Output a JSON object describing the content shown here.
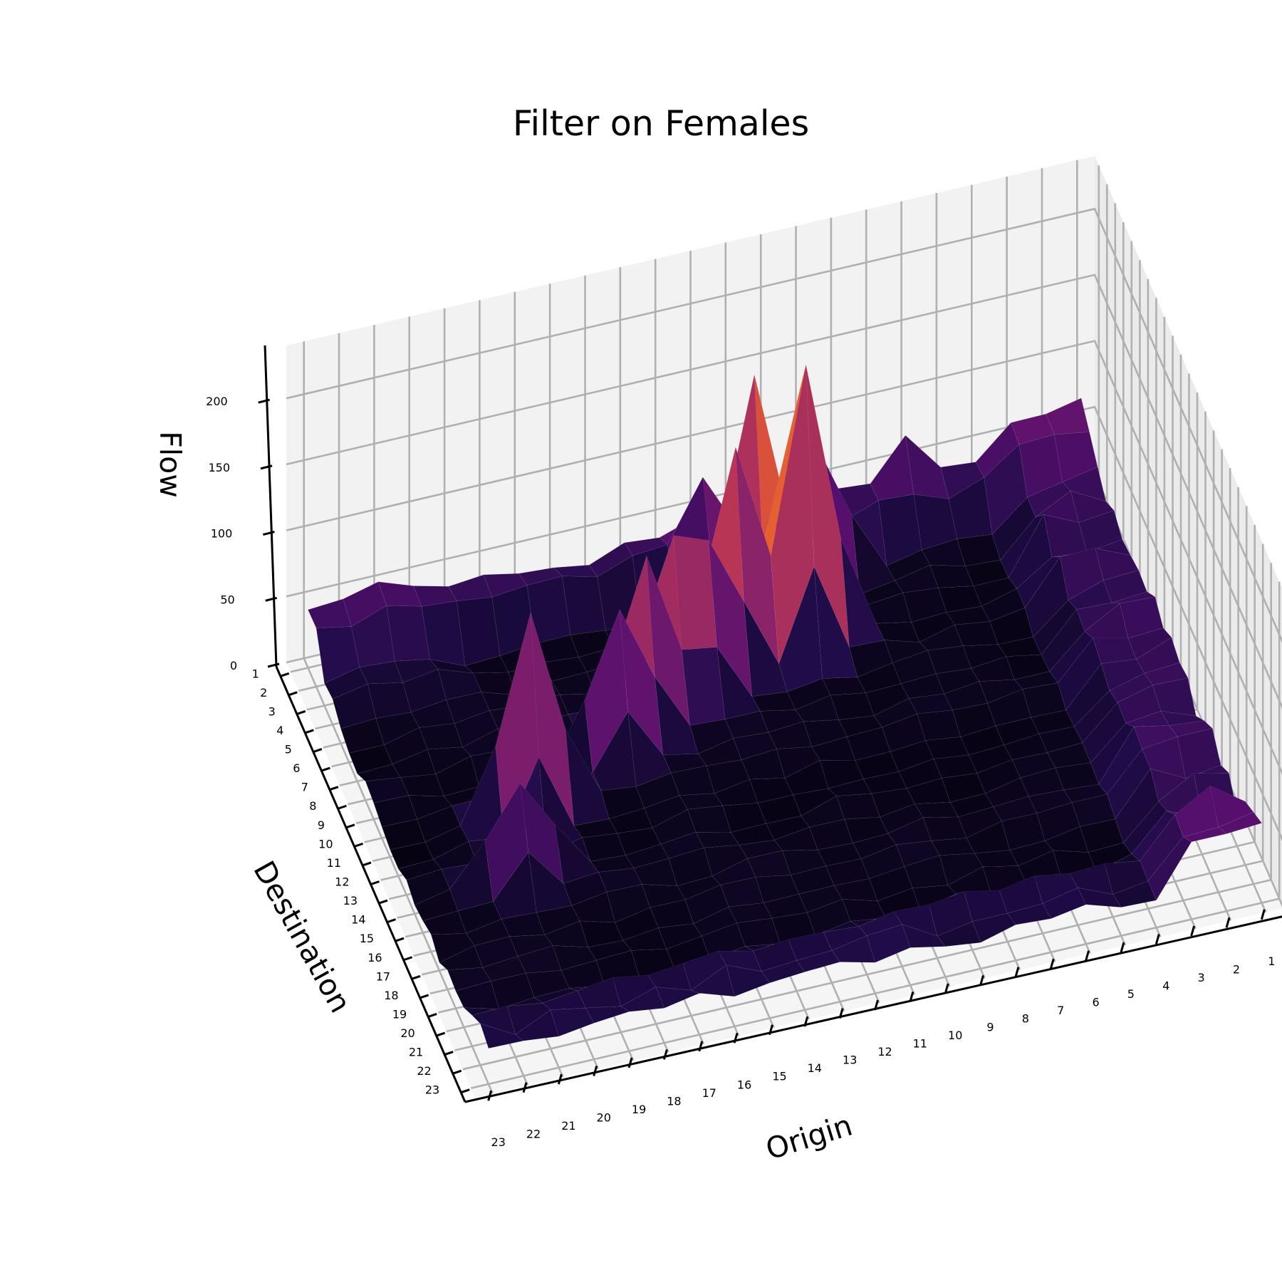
{
  "chart_data": {
    "type": "surface3d",
    "title": "Filter on Females",
    "xlabel": "Origin",
    "ylabel": "Destination",
    "zlabel": "Flow",
    "x_ticks": [
      "1",
      "2",
      "3",
      "4",
      "5",
      "6",
      "7",
      "8",
      "9",
      "10",
      "11",
      "12",
      "13",
      "14",
      "15",
      "16",
      "17",
      "18",
      "19",
      "20",
      "21",
      "22",
      "23"
    ],
    "y_ticks": [
      "1",
      "2",
      "3",
      "4",
      "5",
      "6",
      "7",
      "8",
      "9",
      "10",
      "11",
      "12",
      "13",
      "14",
      "15",
      "16",
      "17",
      "18",
      "19",
      "20",
      "21",
      "22",
      "23"
    ],
    "z_ticks": [
      "0",
      "50",
      "100",
      "150",
      "200"
    ],
    "zlim": [
      0,
      240
    ],
    "colormap": "inferno",
    "grid": true,
    "peaks": [
      {
        "origin": 10,
        "destination": 6,
        "flow": 220
      },
      {
        "origin": 11,
        "destination": 4,
        "flow": 190
      },
      {
        "origin": 10,
        "destination": 5,
        "flow": 180
      },
      {
        "origin": 12,
        "destination": 6,
        "flow": 170
      },
      {
        "origin": 19,
        "destination": 11,
        "flow": 160
      },
      {
        "origin": 15,
        "destination": 8,
        "flow": 135
      },
      {
        "origin": 14,
        "destination": 7,
        "flow": 130
      },
      {
        "origin": 13,
        "destination": 7,
        "flow": 120
      },
      {
        "origin": 16,
        "destination": 9,
        "flow": 115
      },
      {
        "origin": 9,
        "destination": 3,
        "flow": 110
      },
      {
        "origin": 12,
        "destination": 2,
        "flow": 90
      },
      {
        "origin": 20,
        "destination": 14,
        "flow": 80
      },
      {
        "origin": 6,
        "destination": 1,
        "flow": 70
      }
    ]
  }
}
